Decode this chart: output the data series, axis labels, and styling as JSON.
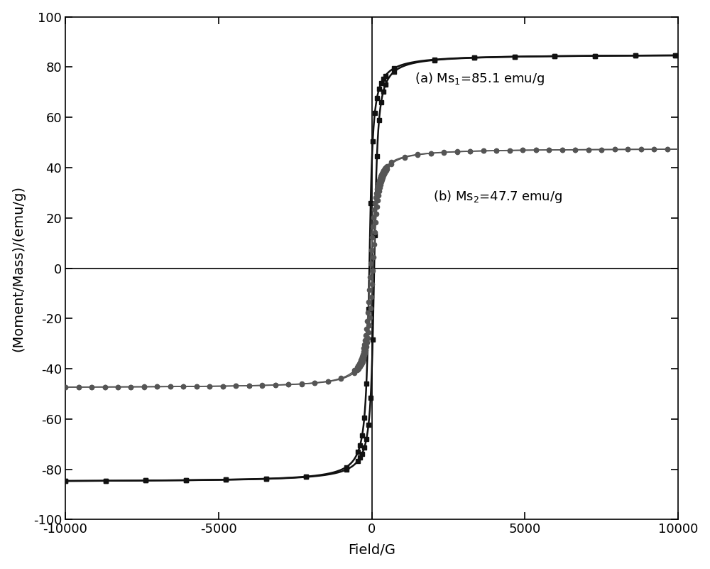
{
  "title": "",
  "xlabel": "Field/G",
  "ylabel": "(Moment/Mass)/(emu/g)",
  "xlim": [
    -10000,
    10000
  ],
  "ylim": [
    -100,
    100
  ],
  "xticks": [
    -10000,
    -5000,
    0,
    5000,
    10000
  ],
  "yticks": [
    -100,
    -80,
    -60,
    -40,
    -20,
    0,
    20,
    40,
    60,
    80,
    100
  ],
  "curve_a_Ms": 85.1,
  "curve_a_Hc": 80,
  "curve_a_alpha": 0.012,
  "curve_a_color": "#111111",
  "curve_b_Ms": 47.7,
  "curve_b_Hc": 40,
  "curve_b_alpha": 0.008,
  "curve_b_color": "#555555",
  "background_color": "#ffffff",
  "label_fontsize": 14,
  "tick_fontsize": 13,
  "annotation_fontsize": 13,
  "marker_step_a": 55,
  "marker_step_b": 18,
  "marker_size_a": 4.5,
  "marker_size_b": 4.5
}
